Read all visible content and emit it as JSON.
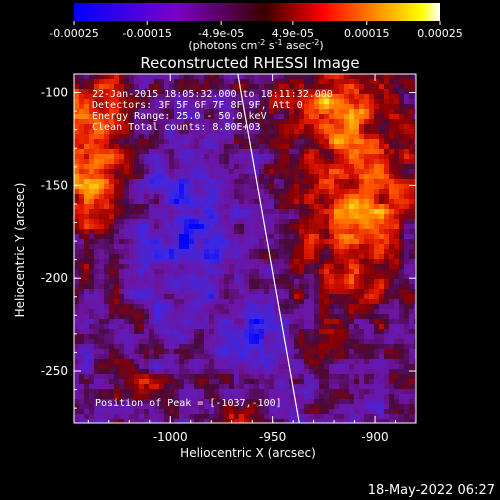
{
  "chart_data": {
    "type": "heatmap",
    "title": "Reconstructed RHESSI Image",
    "xlabel": "Heliocentric X (arcsec)",
    "ylabel": "Heliocentric Y (arcsec)",
    "x_ticks": [
      "-1000",
      "-950",
      "-900"
    ],
    "y_ticks": [
      "-100",
      "-150",
      "-200",
      "-250"
    ],
    "xlim": [
      -1047,
      -880
    ],
    "ylim": [
      -278,
      -90
    ],
    "colorbar": {
      "ticks": [
        "-0.00025",
        "-0.00015",
        "-4.9e-05",
        "4.9e-05",
        "0.00015",
        "0.00025"
      ],
      "range": [
        -0.00025,
        0.00025
      ],
      "unit_text": "(photons cm",
      "unit_sup1": "-2",
      "unit_mid": " s",
      "unit_sup2": "-1",
      "unit_end": " asec",
      "unit_sup3": "-2",
      "unit_close": ")",
      "colors": [
        "#0000ff",
        "#7a00c8",
        "#ff0000",
        "#ffff00",
        "#ffffff"
      ]
    },
    "annotations": {
      "time": "22-Jan-2015 18:05:32.000 to 18:11:32.000",
      "detectors": "Detectors: 3F 5F 6F 7F 8F 9F, Att 0",
      "energy": "Energy Range: 25.0 - 50.0 keV",
      "clean": "Clean    Total counts: 8.80E+03",
      "peak": "Position of Peak = [-1037,-100]"
    },
    "limb_line": {
      "x": [
        -967,
        -937
      ],
      "y": [
        -90,
        -278
      ],
      "color": "#ffffff"
    }
  },
  "footer": {
    "timestamp": "18-May-2022 06:27"
  }
}
